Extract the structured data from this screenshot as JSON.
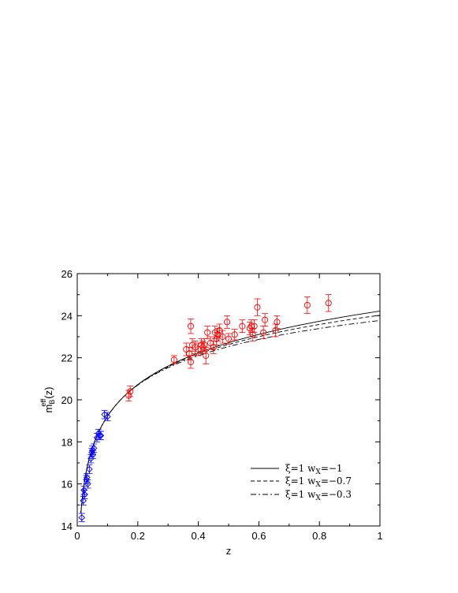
{
  "chart_data": {
    "type": "scatter",
    "title": "",
    "xlabel": "z",
    "ylabel_main": "m",
    "ylabel_sup": "eff",
    "ylabel_sub": "B",
    "ylabel_suffix": "(z)",
    "xlim": [
      0,
      1
    ],
    "ylim": [
      14,
      26
    ],
    "xticks": [
      {
        "value": 0,
        "label": "0"
      },
      {
        "value": 0.2,
        "label": "0.2"
      },
      {
        "value": 0.4,
        "label": "0.4"
      },
      {
        "value": 0.6,
        "label": "0.6"
      },
      {
        "value": 0.8,
        "label": "0.8"
      },
      {
        "value": 1,
        "label": "1"
      }
    ],
    "yticks": [
      {
        "value": 14,
        "label": "14"
      },
      {
        "value": 16,
        "label": "16"
      },
      {
        "value": 18,
        "label": "18"
      },
      {
        "value": 20,
        "label": "20"
      },
      {
        "value": 22,
        "label": "22"
      },
      {
        "value": 24,
        "label": "24"
      },
      {
        "value": 26,
        "label": "26"
      }
    ],
    "grid": false,
    "legend_position": "bottom-right",
    "legend": [
      {
        "label_prefix": "ξ=1 w",
        "label_sub": "X",
        "label_suffix": "=−1",
        "style": "solid"
      },
      {
        "label_prefix": "ξ=1 w",
        "label_sub": "X",
        "label_suffix": "=−0.7",
        "style": "dashed"
      },
      {
        "label_prefix": "ξ=1 w",
        "label_sub": "X",
        "label_suffix": "=−0.3",
        "style": "dashdot"
      }
    ],
    "series": [
      {
        "marker": "diamond",
        "color": "#0000ff",
        "points": [
          {
            "x": 0.015,
            "y": 14.4,
            "err": 0.2
          },
          {
            "x": 0.02,
            "y": 15.2,
            "err": 0.2
          },
          {
            "x": 0.022,
            "y": 15.7,
            "err": 0.2
          },
          {
            "x": 0.025,
            "y": 15.5,
            "err": 0.2
          },
          {
            "x": 0.03,
            "y": 16.2,
            "err": 0.2
          },
          {
            "x": 0.032,
            "y": 16.3,
            "err": 0.2
          },
          {
            "x": 0.035,
            "y": 16.0,
            "err": 0.2
          },
          {
            "x": 0.04,
            "y": 16.7,
            "err": 0.2
          },
          {
            "x": 0.045,
            "y": 17.2,
            "err": 0.2
          },
          {
            "x": 0.048,
            "y": 17.5,
            "err": 0.2
          },
          {
            "x": 0.05,
            "y": 17.6,
            "err": 0.2
          },
          {
            "x": 0.052,
            "y": 17.4,
            "err": 0.2
          },
          {
            "x": 0.055,
            "y": 17.7,
            "err": 0.2
          },
          {
            "x": 0.065,
            "y": 18.2,
            "err": 0.2
          },
          {
            "x": 0.07,
            "y": 18.4,
            "err": 0.2
          },
          {
            "x": 0.075,
            "y": 18.3,
            "err": 0.2
          },
          {
            "x": 0.078,
            "y": 18.3,
            "err": 0.2
          },
          {
            "x": 0.09,
            "y": 19.3,
            "err": 0.2
          },
          {
            "x": 0.1,
            "y": 19.2,
            "err": 0.2
          }
        ]
      },
      {
        "marker": "circle",
        "color": "#ff0000",
        "points": [
          {
            "x": 0.17,
            "y": 20.2,
            "err": 0.25
          },
          {
            "x": 0.175,
            "y": 20.4,
            "err": 0.25
          },
          {
            "x": 0.32,
            "y": 21.9,
            "err": 0.2
          },
          {
            "x": 0.36,
            "y": 22.4,
            "err": 0.3
          },
          {
            "x": 0.37,
            "y": 22.2,
            "err": 0.3
          },
          {
            "x": 0.375,
            "y": 23.5,
            "err": 0.35
          },
          {
            "x": 0.375,
            "y": 21.8,
            "err": 0.3
          },
          {
            "x": 0.38,
            "y": 22.6,
            "err": 0.3
          },
          {
            "x": 0.39,
            "y": 22.5,
            "err": 0.3
          },
          {
            "x": 0.4,
            "y": 22.4,
            "err": 0.3
          },
          {
            "x": 0.41,
            "y": 22.6,
            "err": 0.3
          },
          {
            "x": 0.415,
            "y": 22.5,
            "err": 0.3
          },
          {
            "x": 0.42,
            "y": 22.6,
            "err": 0.3
          },
          {
            "x": 0.425,
            "y": 22.1,
            "err": 0.4
          },
          {
            "x": 0.43,
            "y": 23.2,
            "err": 0.3
          },
          {
            "x": 0.44,
            "y": 22.7,
            "err": 0.3
          },
          {
            "x": 0.45,
            "y": 22.5,
            "err": 0.3
          },
          {
            "x": 0.455,
            "y": 23.2,
            "err": 0.3
          },
          {
            "x": 0.46,
            "y": 22.9,
            "err": 0.3
          },
          {
            "x": 0.465,
            "y": 23.1,
            "err": 0.3
          },
          {
            "x": 0.47,
            "y": 23.3,
            "err": 0.3
          },
          {
            "x": 0.48,
            "y": 23.0,
            "err": 0.3
          },
          {
            "x": 0.495,
            "y": 23.7,
            "err": 0.3
          },
          {
            "x": 0.5,
            "y": 22.9,
            "err": 0.25
          },
          {
            "x": 0.52,
            "y": 23.1,
            "err": 0.25
          },
          {
            "x": 0.545,
            "y": 23.5,
            "err": 0.3
          },
          {
            "x": 0.57,
            "y": 23.4,
            "err": 0.3
          },
          {
            "x": 0.575,
            "y": 23.5,
            "err": 0.3
          },
          {
            "x": 0.58,
            "y": 23.1,
            "err": 0.3
          },
          {
            "x": 0.585,
            "y": 23.5,
            "err": 0.3
          },
          {
            "x": 0.595,
            "y": 24.4,
            "err": 0.4
          },
          {
            "x": 0.615,
            "y": 23.2,
            "err": 0.3
          },
          {
            "x": 0.62,
            "y": 23.8,
            "err": 0.3
          },
          {
            "x": 0.655,
            "y": 23.3,
            "err": 0.3
          },
          {
            "x": 0.66,
            "y": 23.7,
            "err": 0.3
          },
          {
            "x": 0.76,
            "y": 24.5,
            "err": 0.4
          },
          {
            "x": 0.83,
            "y": 24.6,
            "err": 0.4
          }
        ]
      }
    ]
  }
}
